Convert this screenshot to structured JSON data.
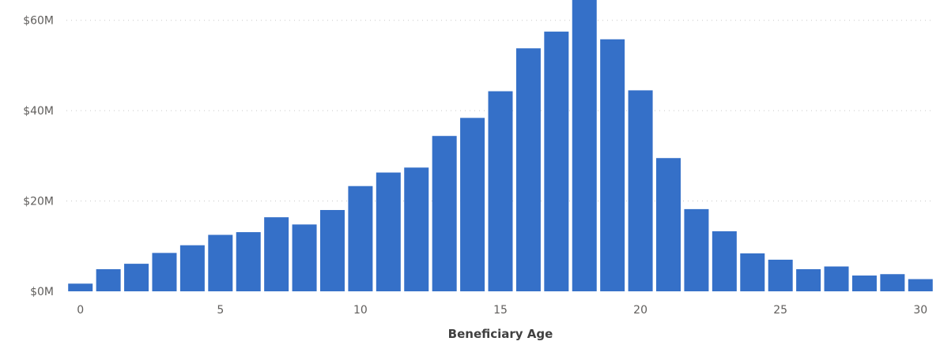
{
  "chart_data": {
    "type": "bar",
    "xlabel": "Beneficiary Age",
    "ylabel": "",
    "x": [
      0,
      1,
      2,
      3,
      4,
      5,
      6,
      7,
      8,
      9,
      10,
      11,
      12,
      13,
      14,
      15,
      16,
      17,
      18,
      19,
      20,
      21,
      22,
      23,
      24,
      25,
      26,
      27,
      28,
      29,
      30
    ],
    "values": [
      1.7,
      4.9,
      6.1,
      8.5,
      10.2,
      12.5,
      13.1,
      16.4,
      14.8,
      18.0,
      23.3,
      26.3,
      27.4,
      34.4,
      38.4,
      44.3,
      53.8,
      57.5,
      64.5,
      55.8,
      44.5,
      29.5,
      18.2,
      13.3,
      8.4,
      7.0,
      4.9,
      5.5,
      3.5,
      3.8,
      2.7
    ],
    "ylim": [
      0,
      64.5
    ],
    "x_ticks": [
      0,
      5,
      10,
      15,
      20,
      25,
      30
    ],
    "y_ticks": [
      {
        "value": 0,
        "label": "$0M"
      },
      {
        "value": 20,
        "label": "$20M"
      },
      {
        "value": 40,
        "label": "$40M"
      },
      {
        "value": 60,
        "label": "$60M"
      }
    ],
    "bar_color": "#3570c8",
    "grid": true
  }
}
